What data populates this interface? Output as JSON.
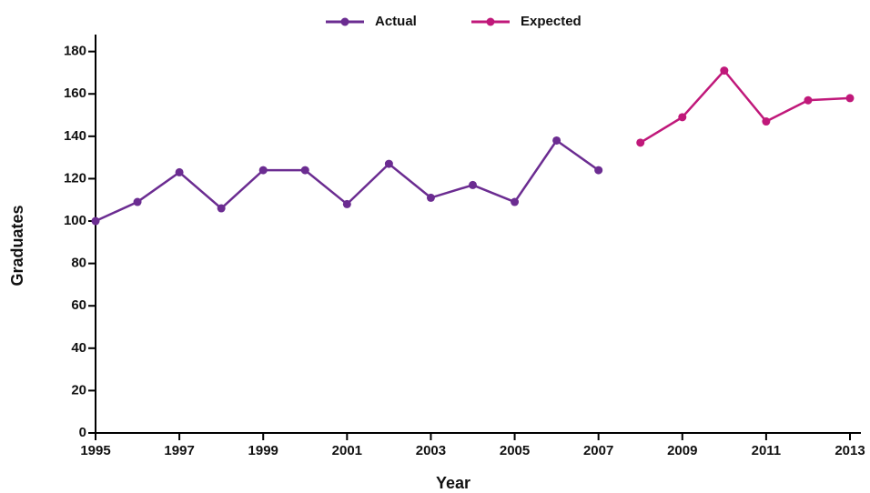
{
  "chart_data": {
    "type": "line",
    "x": [
      1995,
      1996,
      1997,
      1998,
      1999,
      2000,
      2001,
      2002,
      2003,
      2004,
      2005,
      2006,
      2007,
      2008,
      2009,
      2010,
      2011,
      2012,
      2013
    ],
    "series": [
      {
        "name": "Actual",
        "color": "#6b2c91",
        "values": [
          100,
          109,
          123,
          106,
          124,
          124,
          108,
          127,
          111,
          117,
          109,
          138,
          124,
          null,
          null,
          null,
          null,
          null,
          null
        ]
      },
      {
        "name": "Expected",
        "color": "#c0187a",
        "values": [
          null,
          null,
          null,
          null,
          null,
          null,
          null,
          null,
          null,
          null,
          null,
          null,
          null,
          137,
          149,
          171,
          147,
          157,
          158
        ]
      }
    ],
    "xlabel": "Year",
    "ylabel": "Graduates",
    "xlim": [
      1995,
      2013
    ],
    "xticks": [
      1995,
      1997,
      1999,
      2001,
      2003,
      2005,
      2007,
      2009,
      2011,
      2013
    ],
    "ylim": [
      0,
      188
    ],
    "yticks": [
      0,
      20,
      40,
      60,
      80,
      100,
      120,
      140,
      160,
      180
    ],
    "grid": false,
    "legend": "top"
  }
}
